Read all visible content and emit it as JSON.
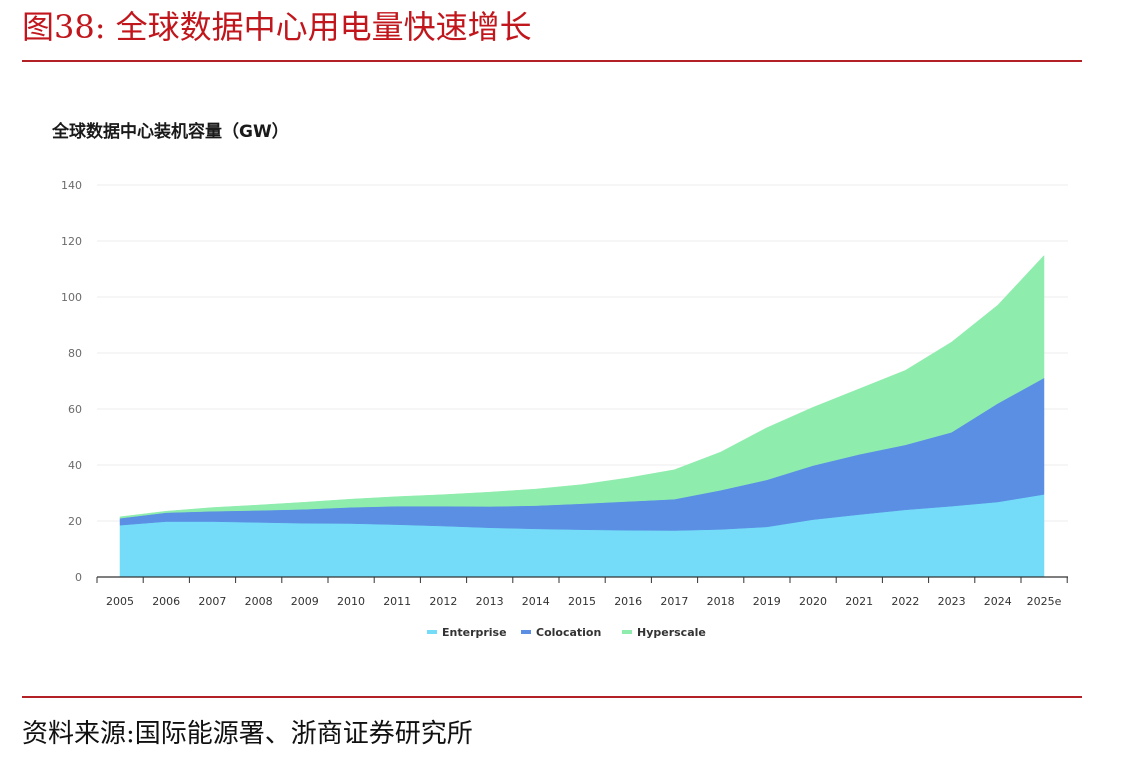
{
  "figure": {
    "title": "图38:   全球数据中心用电量快速增长",
    "source": "资料来源:国际能源署、浙商证券研究所"
  },
  "chart_data": {
    "type": "area",
    "stacked": true,
    "title": "全球数据中心装机容量（GW）",
    "xlabel": "",
    "ylabel": "",
    "categories": [
      "2005",
      "2006",
      "2007",
      "2008",
      "2009",
      "2010",
      "2011",
      "2012",
      "2013",
      "2014",
      "2015",
      "2016",
      "2017",
      "2018",
      "2019",
      "2020",
      "2021",
      "2022",
      "2023",
      "2024",
      "2025e"
    ],
    "yticks": [
      0,
      20,
      40,
      60,
      80,
      100,
      120,
      140
    ],
    "ylim": [
      0,
      140
    ],
    "grid": true,
    "legend_position": "bottom-center",
    "series": [
      {
        "name": "Enterprise",
        "color": "#74dcf8",
        "values": [
          18.5,
          19.8,
          19.8,
          19.5,
          19.2,
          19.1,
          18.7,
          18.2,
          17.6,
          17.2,
          16.9,
          16.7,
          16.6,
          17.0,
          17.9,
          20.5,
          22.3,
          24.0,
          25.3,
          26.8,
          29.5
        ]
      },
      {
        "name": "Colocation",
        "color": "#5b8fe4",
        "values": [
          2.5,
          3.2,
          3.7,
          4.3,
          5.0,
          5.8,
          6.6,
          7.1,
          7.6,
          8.3,
          9.3,
          10.3,
          11.2,
          14.0,
          16.8,
          19.3,
          21.5,
          23.2,
          26.4,
          35.2,
          41.6
        ]
      },
      {
        "name": "Hyperscale",
        "color": "#8eedad",
        "values": [
          0.5,
          0.5,
          1.3,
          1.9,
          2.5,
          2.9,
          3.4,
          4.1,
          5.1,
          5.9,
          6.8,
          8.4,
          10.5,
          13.6,
          18.6,
          20.8,
          23.4,
          26.6,
          32.2,
          35.1,
          43.7
        ]
      }
    ]
  }
}
